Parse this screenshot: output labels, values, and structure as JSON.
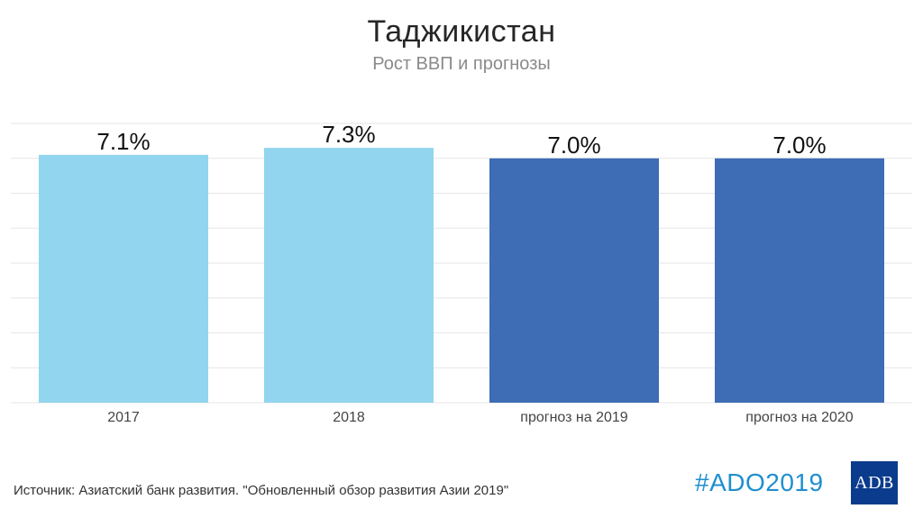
{
  "title": "Таджикистан",
  "subtitle": "Рост ВВП и прогнозы",
  "footer": {
    "source": "Источник: Азиатский банк развития. \"Обновленный обзор развития Азии 2019\"",
    "hashtag": "#ADO2019",
    "logo_text": "ADB"
  },
  "colors": {
    "actual": "#92D5EF",
    "forecast": "#3E6CB5",
    "grid": "#e6e6e6",
    "hashtag": "#1F8FD0",
    "logo_bg": "#0B3B8C"
  },
  "chart_data": {
    "type": "bar",
    "title": "Таджикистан",
    "subtitle": "Рост ВВП и прогнозы",
    "categories": [
      "2017",
      "2018",
      "прогноз на 2019",
      "прогноз на 2020"
    ],
    "values": [
      7.1,
      7.3,
      7.0,
      7.0
    ],
    "value_labels": [
      "7.1%",
      "7.3%",
      "7.0%",
      "7.0%"
    ],
    "bar_kind": [
      "actual",
      "actual",
      "forecast",
      "forecast"
    ],
    "ylim": [
      0,
      8
    ],
    "grid": true,
    "legend": "none"
  }
}
